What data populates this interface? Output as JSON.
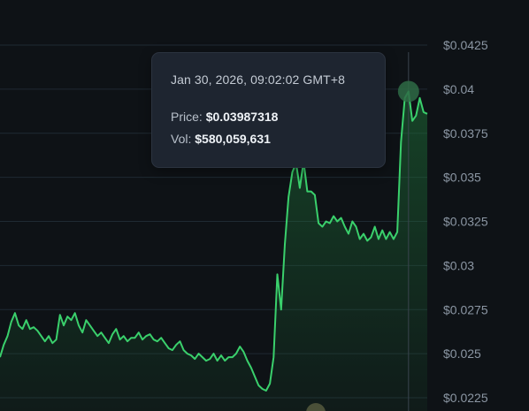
{
  "colors": {
    "background": "#0e1216",
    "line": "#3ad06c",
    "area_top": "#1d6b36",
    "grid": "#1f2a33",
    "axis_text": "#8b96a3",
    "crosshair": "#3a444e",
    "marker": "#2e6b45"
  },
  "tooltip": {
    "date": "Jan 30, 2026, 09:02:02 GMT+8",
    "price_label": "Price:",
    "price_value": "$0.03987318",
    "vol_label": "Vol:",
    "vol_value": "$580,059,631"
  },
  "chart_data": {
    "type": "area",
    "series": [
      {
        "values": [
          0.0248,
          0.0255,
          0.026,
          0.0268,
          0.0273,
          0.0266,
          0.0264,
          0.0269,
          0.0264,
          0.0265,
          0.0263,
          0.026,
          0.0257,
          0.026,
          0.0256,
          0.0258,
          0.0272,
          0.0266,
          0.0271,
          0.0269,
          0.0273,
          0.0266,
          0.0262,
          0.0269,
          0.0266,
          0.0263,
          0.026,
          0.0262,
          0.0259,
          0.0256,
          0.0261,
          0.0264,
          0.0258,
          0.026,
          0.0257,
          0.0259,
          0.0259,
          0.0262,
          0.0258,
          0.026,
          0.0261,
          0.0258,
          0.0257,
          0.0259,
          0.0256,
          0.0253,
          0.0252,
          0.0255,
          0.0257,
          0.0252,
          0.025,
          0.0249,
          0.0247,
          0.025,
          0.0248,
          0.0246,
          0.0247,
          0.025,
          0.0246,
          0.0249,
          0.0246,
          0.0248,
          0.0248,
          0.025,
          0.0254,
          0.0251,
          0.0246,
          0.0242,
          0.0237,
          0.0232,
          0.023,
          0.0229,
          0.0233,
          0.0248,
          0.0295,
          0.0275,
          0.0312,
          0.0339,
          0.0353,
          0.0358,
          0.0344,
          0.0359,
          0.0342,
          0.0342,
          0.034,
          0.0324,
          0.0322,
          0.0325,
          0.0324,
          0.0328,
          0.0325,
          0.0327,
          0.0322,
          0.0318,
          0.0325,
          0.0322,
          0.0315,
          0.0318,
          0.0314,
          0.0316,
          0.0322,
          0.0315,
          0.032,
          0.0315,
          0.0319,
          0.0315,
          0.0319,
          0.037,
          0.0395,
          0.03987,
          0.0382,
          0.0385,
          0.0395,
          0.0387,
          0.0386
        ]
      }
    ],
    "y_ticks": [
      "$0.0225",
      "$0.025",
      "$0.0275",
      "$0.03",
      "$0.0325",
      "$0.035",
      "$0.0375",
      "$0.04",
      "$0.0425"
    ],
    "y_tick_values": [
      0.0225,
      0.025,
      0.0275,
      0.03,
      0.0325,
      0.035,
      0.0375,
      0.04,
      0.0425
    ],
    "ylim": [
      0.0225,
      0.0425
    ],
    "grid": true,
    "hover_index": 109
  }
}
